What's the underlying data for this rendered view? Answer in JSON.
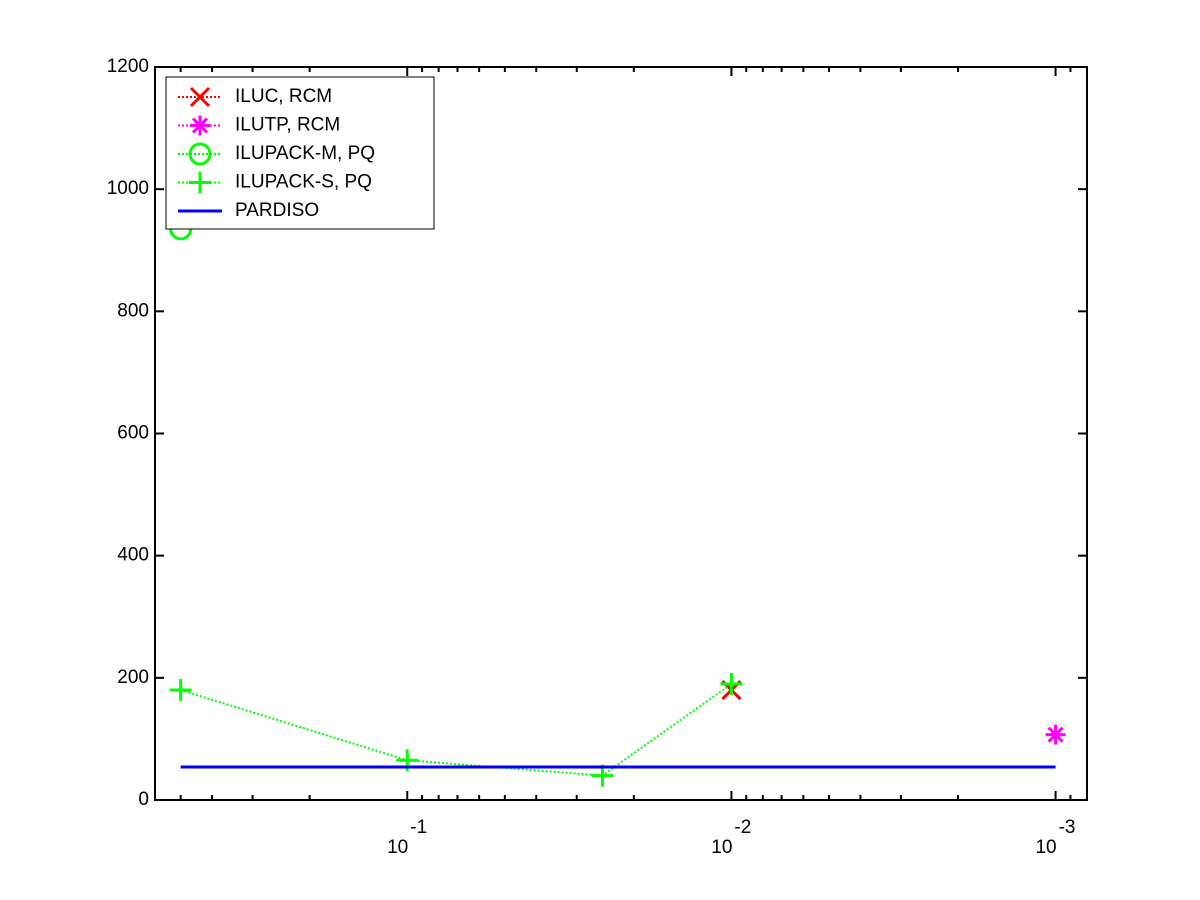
{
  "chart_data": {
    "type": "line",
    "xscale": "log",
    "xreverse": true,
    "xlim": [
      0.0008,
      0.6
    ],
    "xticks": [
      {
        "value": 0.1,
        "label": "10",
        "exponent": "-1"
      },
      {
        "value": 0.01,
        "label": "10",
        "exponent": "-2"
      },
      {
        "value": 0.001,
        "label": "10",
        "exponent": "-3"
      }
    ],
    "xminorticks": [
      0.5,
      0.4,
      0.3,
      0.2,
      0.09,
      0.08,
      0.07,
      0.06,
      0.05,
      0.04,
      0.03,
      0.02,
      0.009,
      0.008,
      0.007,
      0.006,
      0.005,
      0.004,
      0.003,
      0.002,
      0.0009
    ],
    "ylim": [
      0,
      1200
    ],
    "yticks": [
      0,
      200,
      400,
      600,
      800,
      1000,
      1200
    ],
    "grid": false,
    "legend": "upper-left",
    "series": [
      {
        "name": "ILUC, RCM",
        "color": "#ff0000",
        "marker": "x",
        "linestyle": "dotted",
        "x": [
          0.01
        ],
        "values": [
          180
        ]
      },
      {
        "name": "ILUTP, RCM",
        "color": "#ff00ff",
        "marker": "star",
        "linestyle": "dotted",
        "x": [
          0.001
        ],
        "values": [
          107
        ]
      },
      {
        "name": "ILUPACK-M, PQ",
        "color": "#00ff00",
        "marker": "circle",
        "linestyle": "dotted",
        "x": [
          0.5
        ],
        "values": [
          935
        ]
      },
      {
        "name": "ILUPACK-S, PQ",
        "color": "#00ff00",
        "marker": "plus",
        "linestyle": "dotted",
        "x": [
          0.5,
          0.1,
          0.025,
          0.01
        ],
        "values": [
          180,
          65,
          40,
          190
        ]
      },
      {
        "name": "PARDISO",
        "color": "#0000ff",
        "marker": "none",
        "linestyle": "solid",
        "x": [
          0.5,
          0.001
        ],
        "values": [
          54,
          54
        ]
      }
    ]
  }
}
